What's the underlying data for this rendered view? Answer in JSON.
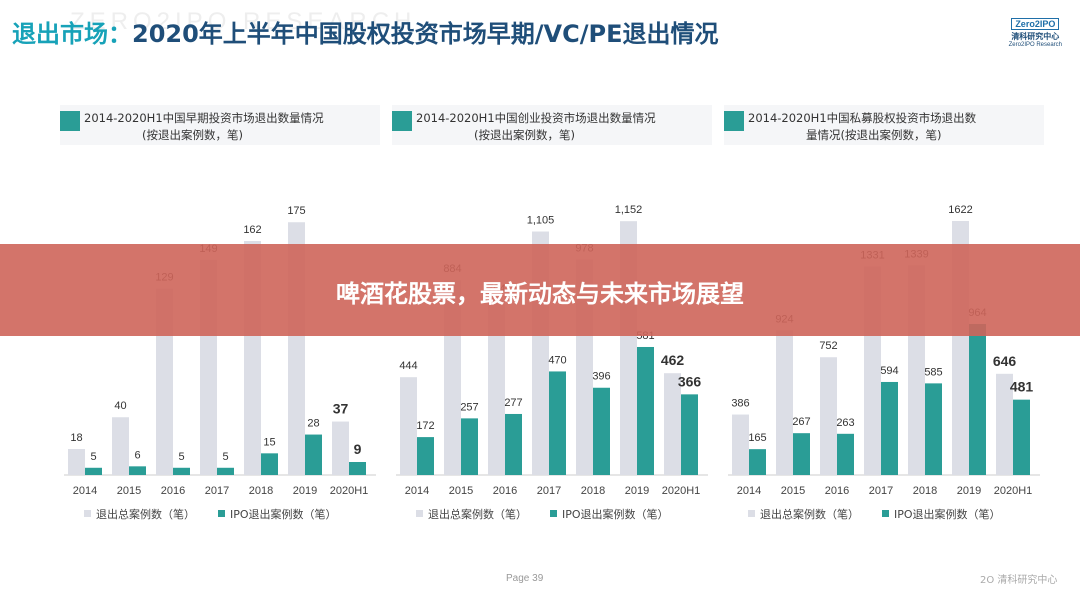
{
  "page": {
    "watermark": "ZERO2IPO RESEARCH",
    "title_lead": "退出市场：",
    "title_main": "2020年上半年中国股权投资市场早期/VC/PE退出情况",
    "logo_box": "Zero2IPO",
    "logo_cn": "清科研究中心",
    "logo_en": "Zero2IPO Research",
    "banner": "啤酒花股票，最新动态与未来市场展望",
    "page_number": "Page  39",
    "footer_logo": "2O 清科研究中心"
  },
  "colors": {
    "total": "#dcdee6",
    "ipo": "#2a9d96",
    "title": "#1f4e79",
    "banner": "#cd6559"
  },
  "chart_data": [
    {
      "type": "bar",
      "title_line1": "2014-2020H1中国早期投资市场退出数量情况",
      "title_line2": "(按退出案例数，笔)",
      "categories": [
        "2014",
        "2015",
        "2016",
        "2017",
        "2018",
        "2019",
        "2020H1"
      ],
      "series": [
        {
          "name": "退出总案例数（笔）",
          "values": [
            18,
            40,
            129,
            149,
            162,
            175,
            37
          ]
        },
        {
          "name": "IPO退出案例数（笔）",
          "values": [
            5,
            6,
            5,
            5,
            15,
            28,
            9
          ]
        }
      ],
      "ylim": [
        0,
        180
      ],
      "legend": "bottom"
    },
    {
      "type": "bar",
      "title_line1": "2014-2020H1中国创业投资市场退出数量情况",
      "title_line2": "(按退出案例数，笔)",
      "categories": [
        "2014",
        "2015",
        "2016",
        "2017",
        "2018",
        "2019",
        "2020H1"
      ],
      "series": [
        {
          "name": "退出总案例数（笔）",
          "values": [
            444,
            884,
            794,
            1105,
            978,
            1152,
            462
          ]
        },
        {
          "name": "IPO退出案例数（笔）",
          "values": [
            172,
            257,
            277,
            470,
            396,
            581,
            366
          ]
        }
      ],
      "value_labels_total": [
        "444",
        "884",
        "794",
        "1,105",
        "978",
        "1,152",
        "462"
      ],
      "ylim": [
        0,
        1180
      ],
      "legend": "bottom"
    },
    {
      "type": "bar",
      "title_line1": "2014-2020H1中国私募股权投资市场退出数",
      "title_line2": "量情况(按退出案例数，笔)",
      "categories": [
        "2014",
        "2015",
        "2016",
        "2017",
        "2018",
        "2019",
        "2020H1"
      ],
      "series": [
        {
          "name": "退出总案例数（笔）",
          "values": [
            386,
            924,
            752,
            1331,
            1339,
            1622,
            646
          ]
        },
        {
          "name": "IPO退出案例数（笔）",
          "values": [
            165,
            267,
            263,
            594,
            585,
            964,
            481
          ]
        }
      ],
      "ylim": [
        0,
        1660
      ],
      "legend": "bottom"
    }
  ]
}
